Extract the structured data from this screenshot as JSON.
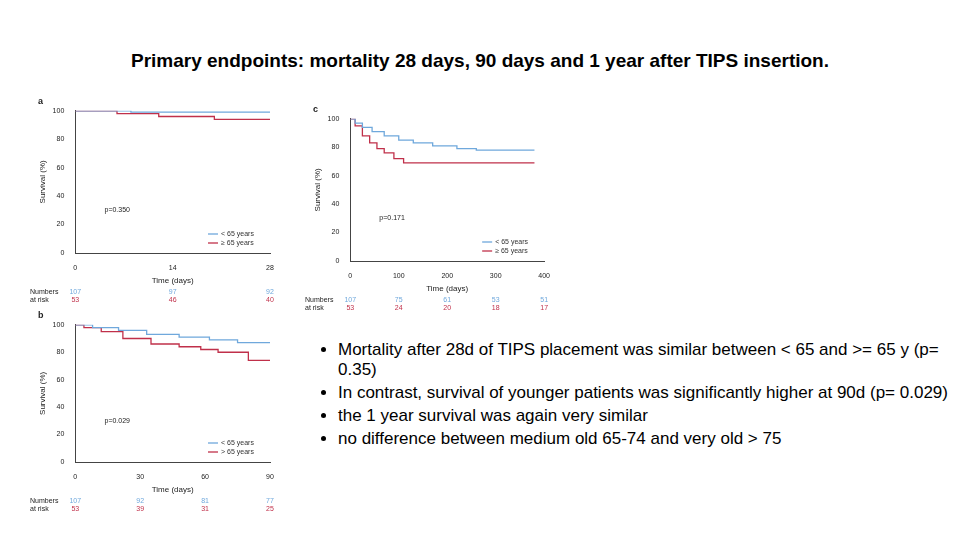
{
  "title": "Primary endpoints: mortality 28 days, 90 days and 1 year after TIPS insertion.",
  "bullets": [
    "Mortality after 28d of TIPS placement was similar between < 65 and >= 65 y (p= 0.35)",
    "In contrast, survival of younger patients was significantly higher at 90d (p= 0.029)",
    "the 1 year survival was again very similar",
    "no difference between medium old 65-74 and very old > 75"
  ],
  "chart_data": [
    {
      "type": "line",
      "title": "a",
      "line_style": "stepped",
      "x_label": "Time (days)",
      "y_label": "Survival (%)",
      "xlim": [
        0,
        28
      ],
      "xticks": [
        0,
        14,
        28
      ],
      "ylim": [
        0,
        100
      ],
      "yticks": [
        0,
        20,
        40,
        60,
        80,
        100
      ],
      "grid": false,
      "legend": "lower right",
      "annotation": "p=0.350",
      "at_risk_label": [
        "Numbers",
        "at risk"
      ],
      "series": [
        {
          "name": "< 65 years",
          "color": "#6fa8dc",
          "x": [
            0,
            8,
            28
          ],
          "values": [
            100,
            99,
            99
          ],
          "at_risk": [
            107,
            97,
            92
          ]
        },
        {
          "name": "≥ 65 years",
          "color": "#c0304a",
          "x": [
            0,
            6,
            12,
            20,
            28
          ],
          "values": [
            100,
            98,
            96,
            94,
            94
          ],
          "at_risk": [
            53,
            46,
            40
          ]
        }
      ]
    },
    {
      "type": "line",
      "title": "b",
      "line_style": "stepped",
      "x_label": "Time (days)",
      "y_label": "Survival (%)",
      "xlim": [
        0,
        90
      ],
      "xticks": [
        0,
        30,
        60,
        90
      ],
      "ylim": [
        0,
        100
      ],
      "yticks": [
        0,
        20,
        40,
        60,
        80,
        100
      ],
      "grid": false,
      "legend": "lower right",
      "annotation": "p=0.029",
      "at_risk_label": [
        "Numbers",
        "at risk"
      ],
      "series": [
        {
          "name": "< 65 years",
          "color": "#6fa8dc",
          "x": [
            0,
            8,
            20,
            33,
            48,
            62,
            75,
            90
          ],
          "values": [
            100,
            98,
            96,
            93,
            91,
            89,
            87,
            87
          ],
          "at_risk": [
            107,
            92,
            81,
            77
          ]
        },
        {
          "name": "> 65 years",
          "color": "#c0304a",
          "x": [
            0,
            4,
            12,
            22,
            35,
            48,
            58,
            66,
            80,
            90
          ],
          "values": [
            100,
            98,
            95,
            90,
            86,
            84,
            82,
            80,
            74,
            74
          ],
          "at_risk": [
            53,
            39,
            31,
            25
          ]
        }
      ]
    },
    {
      "type": "line",
      "title": "c",
      "line_style": "stepped",
      "x_label": "Time (days)",
      "y_label": "Survival (%)",
      "xlim": [
        0,
        400
      ],
      "xticks": [
        0,
        100,
        200,
        300,
        400
      ],
      "ylim": [
        0,
        100
      ],
      "yticks": [
        0,
        20,
        40,
        60,
        80,
        100
      ],
      "grid": false,
      "legend": "lower right",
      "annotation": "p=0.171",
      "at_risk_label": [
        "Numbers",
        "at risk"
      ],
      "series": [
        {
          "name": "< 65 years",
          "color": "#6fa8dc",
          "x": [
            0,
            10,
            25,
            45,
            70,
            100,
            130,
            170,
            220,
            260,
            380
          ],
          "values": [
            100,
            97,
            94,
            91,
            88,
            85,
            83,
            81,
            79,
            78,
            78
          ],
          "at_risk": [
            107,
            75,
            61,
            53,
            51
          ]
        },
        {
          "name": "≥ 65 years",
          "color": "#c0304a",
          "x": [
            0,
            10,
            25,
            40,
            55,
            70,
            90,
            110,
            380
          ],
          "values": [
            100,
            95,
            88,
            83,
            79,
            76,
            72,
            69,
            69
          ],
          "at_risk": [
            53,
            24,
            20,
            18,
            17
          ]
        }
      ]
    }
  ]
}
